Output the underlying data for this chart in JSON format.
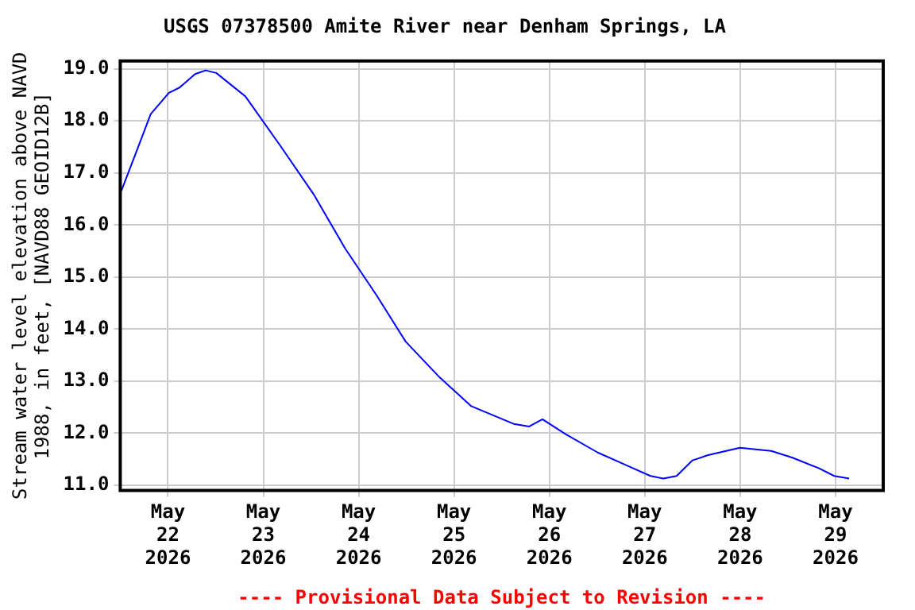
{
  "chart_data": {
    "type": "line",
    "title": "USGS 07378500 Amite River near Denham Springs, LA",
    "ylabel": "Stream water level elevation above NAVD 1988, in feet, [NAVD88 GEOID12B]",
    "annotations": [
      "---- Provisional Data Subject to Revision ----"
    ],
    "x": [
      "2026-05-21T12:15",
      "2026-05-21T15:40",
      "2026-05-21T19:40",
      "2026-05-22T00:15",
      "2026-05-22T02:55",
      "2026-05-22T06:50",
      "2026-05-22T09:30",
      "2026-05-22T12:10",
      "2026-05-22T19:30",
      "2026-05-23T04:40",
      "2026-05-23T12:40",
      "2026-05-23T20:35",
      "2026-05-24T04:30",
      "2026-05-24T11:50",
      "2026-05-24T20:25",
      "2026-05-25T04:20",
      "2026-05-25T15:00",
      "2026-05-25T18:55",
      "2026-05-25T22:15",
      "2026-05-26T04:10",
      "2026-05-26T12:10",
      "2026-05-26T20:05",
      "2026-05-27T01:25",
      "2026-05-27T04:40",
      "2026-05-27T08:00",
      "2026-05-27T12:00",
      "2026-05-27T15:55",
      "2026-05-27T23:55",
      "2026-05-28T07:50",
      "2026-05-28T13:10",
      "2026-05-28T19:45",
      "2026-05-28T23:40",
      "2026-05-29T03:25"
    ],
    "series": [
      {
        "color": "#0000ff",
        "values": [
          16.65,
          17.33,
          18.13,
          18.54,
          18.64,
          18.9,
          18.97,
          18.92,
          18.47,
          17.48,
          16.59,
          15.55,
          14.65,
          13.76,
          13.07,
          12.52,
          12.18,
          12.13,
          12.27,
          11.98,
          11.63,
          11.36,
          11.18,
          11.13,
          11.18,
          11.48,
          11.58,
          11.72,
          11.66,
          11.53,
          11.33,
          11.18,
          11.13
        ]
      }
    ],
    "xlim": [
      "2026-05-21T12:00",
      "2026-05-29T12:00"
    ],
    "xticks": [
      {
        "value": "2026-05-22",
        "label": "May 22 2026"
      },
      {
        "value": "2026-05-23",
        "label": "May 23 2026"
      },
      {
        "value": "2026-05-24",
        "label": "May 24 2026"
      },
      {
        "value": "2026-05-25",
        "label": "May 25 2026"
      },
      {
        "value": "2026-05-26",
        "label": "May 26 2026"
      },
      {
        "value": "2026-05-27",
        "label": "May 27 2026"
      },
      {
        "value": "2026-05-28",
        "label": "May 28 2026"
      },
      {
        "value": "2026-05-29",
        "label": "May 29 2026"
      }
    ],
    "ylim": [
      10.9,
      19.15
    ],
    "yticks": [
      {
        "value": 11,
        "label": "11.0"
      },
      {
        "value": 12,
        "label": "12.0"
      },
      {
        "value": 13,
        "label": "13.0"
      },
      {
        "value": 14,
        "label": "14.0"
      },
      {
        "value": 15,
        "label": "15.0"
      },
      {
        "value": 16,
        "label": "16.0"
      },
      {
        "value": 17,
        "label": "17.0"
      },
      {
        "value": 18,
        "label": "18.0"
      },
      {
        "value": 19,
        "label": "19.0"
      }
    ],
    "grid": true,
    "legend": false,
    "marker": "none",
    "line_style": "solid"
  }
}
